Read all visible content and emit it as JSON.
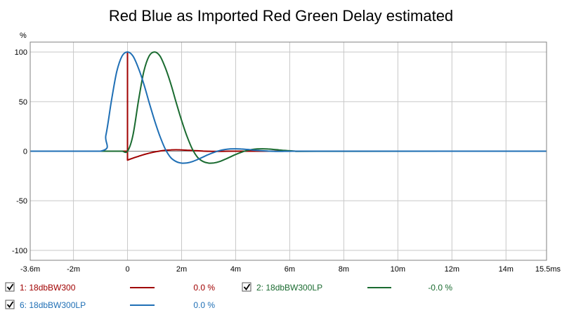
{
  "chart_data": {
    "type": "line",
    "title": "Red Blue as Imported Red Green Delay estimated",
    "ylabel": "%",
    "xlabel": "",
    "xlim": [
      -3.6,
      15.5
    ],
    "ylim": [
      -110,
      110
    ],
    "x_unit": "ms",
    "grid": true,
    "x_ticks": [
      {
        "value": -3.6,
        "label": "-3.6m"
      },
      {
        "value": -2,
        "label": "-2m"
      },
      {
        "value": 0,
        "label": "0"
      },
      {
        "value": 2,
        "label": "2m"
      },
      {
        "value": 4,
        "label": "4m"
      },
      {
        "value": 6,
        "label": "6m"
      },
      {
        "value": 8,
        "label": "8m"
      },
      {
        "value": 10,
        "label": "10m"
      },
      {
        "value": 12,
        "label": "12m"
      },
      {
        "value": 14,
        "label": "14m"
      },
      {
        "value": 15.5,
        "label": "15.5ms"
      }
    ],
    "y_ticks": [
      {
        "value": 100,
        "label": "100"
      },
      {
        "value": 50,
        "label": "50"
      },
      {
        "value": 0,
        "label": "0"
      },
      {
        "value": -50,
        "label": "-50"
      },
      {
        "value": -100,
        "label": "-100"
      }
    ],
    "series": [
      {
        "name": "1: 18dbBW300",
        "color": "#a00000",
        "value_label": "0.0 %",
        "x": [
          -3.6,
          0,
          0,
          0,
          0.05,
          0.2,
          0.4,
          0.6,
          0.8,
          1.0,
          1.2,
          1.4,
          1.6,
          1.8,
          2.0,
          2.2,
          2.4,
          2.6,
          2.8,
          3.0,
          3.2,
          3.6,
          4.0,
          5.0,
          15.5
        ],
        "y": [
          0,
          0,
          100,
          -9,
          -8.5,
          -7,
          -5.2,
          -3.5,
          -2,
          -0.8,
          0.2,
          0.9,
          1.3,
          1.4,
          1.3,
          1.0,
          0.7,
          0.4,
          0.1,
          -0.1,
          -0.2,
          -0.1,
          0,
          0,
          0
        ]
      },
      {
        "name": "2: 18dbBW300LP",
        "color": "#1a6b30",
        "value_label": "-0.0 %",
        "x": [
          -3.6,
          -1.0,
          -0.8,
          -0.6,
          -0.4,
          -0.2,
          0,
          0.2,
          0.4,
          0.6,
          0.8,
          1.0,
          1.2,
          1.4,
          1.6,
          1.8,
          2.0,
          2.2,
          2.4,
          2.6,
          2.8,
          3.0,
          3.2,
          3.4,
          3.6,
          3.8,
          4.0,
          4.2,
          4.4,
          4.6,
          4.8,
          5.0,
          5.2,
          5.4,
          5.6,
          5.8,
          6.0,
          6.2,
          6.5,
          7.0,
          15.5
        ],
        "y": [
          0,
          0,
          0,
          0,
          0,
          0,
          0,
          16,
          50,
          80,
          96,
          100,
          96,
          84,
          68,
          49,
          31,
          15,
          2,
          -6.5,
          -10.5,
          -12,
          -11.8,
          -10.5,
          -8.3,
          -5.8,
          -3.3,
          -1.2,
          0.6,
          1.7,
          2.3,
          2.4,
          2.2,
          1.8,
          1.3,
          0.8,
          0.4,
          0.1,
          -0.2,
          -0.1,
          0
        ]
      },
      {
        "name": "6: 18dbBW300LP",
        "color": "#1f6fb5",
        "value_label": "0.0 %",
        "x": [
          -3.6,
          -1.0,
          -0.8,
          -0.6,
          -0.4,
          -0.2,
          0,
          0.2,
          0.4,
          0.6,
          0.8,
          1.0,
          1.2,
          1.4,
          1.6,
          1.8,
          2.0,
          2.2,
          2.4,
          2.6,
          2.8,
          3.0,
          3.2,
          3.4,
          3.6,
          3.8,
          4.0,
          4.2,
          4.4,
          4.6,
          4.8,
          5.0,
          5.2,
          5.4,
          5.6,
          5.8,
          6.0,
          6.2,
          6.5,
          7.0,
          15.5
        ],
        "y": [
          0,
          0,
          16,
          50,
          80,
          96,
          100,
          96,
          84,
          68,
          49,
          31,
          15,
          2,
          -6.5,
          -10.5,
          -12,
          -11.8,
          -10.5,
          -8.3,
          -5.8,
          -3.3,
          -1.2,
          0.6,
          1.7,
          2.3,
          2.4,
          2.2,
          1.8,
          1.3,
          0.8,
          0.4,
          0.1,
          -0.1,
          -0.2,
          -0.1,
          -0.1,
          0,
          0,
          0,
          0
        ]
      }
    ],
    "legend": [
      {
        "series_index": 0,
        "checked": true
      },
      {
        "series_index": 1,
        "checked": true
      },
      {
        "series_index": 2,
        "checked": true
      }
    ]
  },
  "colors": {
    "grid": "#c8c8c8",
    "frame": "#808080",
    "zero_line": "#808080"
  }
}
